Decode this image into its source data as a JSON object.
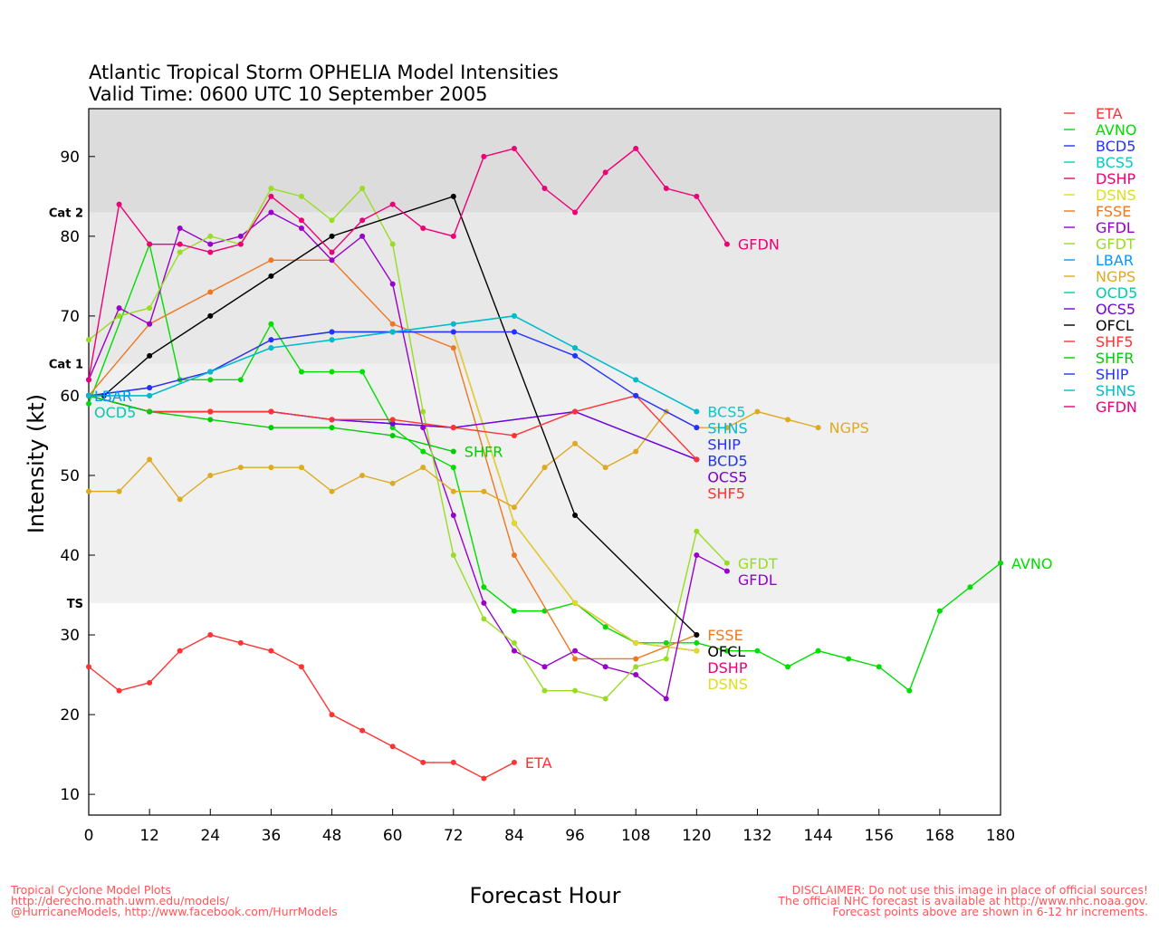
{
  "chart_data": {
    "type": "line",
    "title": "Atlantic Tropical Storm OPHELIA Model Intensities",
    "subtitle": "Valid Time: 0600 UTC 10 September 2005",
    "xlabel": "Forecast Hour",
    "ylabel": "Intensity (kt)",
    "xlim": [
      0,
      180
    ],
    "ylim": [
      7.4,
      96
    ],
    "xticks": [
      0,
      12,
      24,
      36,
      48,
      60,
      72,
      84,
      96,
      108,
      120,
      132,
      144,
      156,
      168,
      180
    ],
    "yticks": [
      10,
      20,
      30,
      40,
      50,
      60,
      70,
      80,
      90
    ],
    "bands": [
      {
        "label": "TS",
        "from": 34,
        "to": 64,
        "color": "#f0f0f0"
      },
      {
        "label": "Cat 1",
        "from": 64,
        "to": 83,
        "color": "#e8e8e8"
      },
      {
        "label": "Cat 2",
        "from": 83,
        "to": 96,
        "color": "#dcdcdc"
      }
    ],
    "legend_position": "right",
    "series": [
      {
        "name": "ETA",
        "color": "#ff3333",
        "x": [
          0,
          6,
          12,
          18,
          24,
          30,
          36,
          42,
          48,
          54,
          60,
          66,
          72,
          78,
          84
        ],
        "y": [
          26,
          23,
          24,
          28,
          30,
          29,
          28,
          26,
          20,
          18,
          16,
          14,
          14,
          12,
          14
        ]
      },
      {
        "name": "AVNO",
        "color": "#00dd00",
        "x": [
          0,
          12,
          18,
          24,
          30,
          36,
          42,
          48,
          54,
          60,
          66,
          72,
          78,
          84,
          90,
          96,
          102,
          108,
          114,
          120,
          126,
          132,
          138,
          144,
          150,
          156,
          162,
          168,
          174,
          180
        ],
        "y": [
          59,
          79,
          62,
          62,
          62,
          69,
          63,
          63,
          63,
          56,
          53,
          51,
          36,
          33,
          33,
          34,
          31,
          29,
          29,
          29,
          28,
          28,
          26,
          28,
          27,
          26,
          23,
          33,
          36,
          39
        ]
      },
      {
        "name": "BCD5",
        "color": "#2233ff",
        "x": [
          0,
          12,
          24,
          36,
          48,
          60,
          72,
          96,
          120
        ],
        "y": [
          60,
          58,
          58,
          58,
          57,
          56.5,
          56,
          58,
          52
        ]
      },
      {
        "name": "BCS5",
        "color": "#00cccc",
        "x": [
          0,
          12,
          24,
          36,
          48,
          60,
          72,
          84,
          96,
          108,
          120
        ],
        "y": [
          60,
          60,
          63,
          66,
          67,
          68,
          69,
          70,
          66,
          62,
          58
        ]
      },
      {
        "name": "DSHP",
        "color": "#ee0077",
        "x": [
          0,
          12,
          24,
          36,
          48,
          60,
          72,
          84,
          96,
          108,
          120
        ],
        "y": [
          60,
          61,
          63,
          67,
          68,
          68,
          68,
          44,
          34,
          29,
          28
        ]
      },
      {
        "name": "DSNS",
        "color": "#dddd22",
        "x": [
          0,
          12,
          24,
          36,
          48,
          60,
          72,
          84,
          96,
          108,
          120
        ],
        "y": [
          60,
          61,
          63,
          67,
          68,
          68,
          68,
          44,
          34,
          29,
          28
        ]
      },
      {
        "name": "FSSE",
        "color": "#ee7722",
        "x": [
          0,
          12,
          24,
          36,
          48,
          60,
          72,
          84,
          96,
          108,
          120
        ],
        "y": [
          60,
          69,
          73,
          77,
          77,
          69,
          66,
          40,
          27,
          27,
          30
        ]
      },
      {
        "name": "GFDL",
        "color": "#9900cc",
        "x": [
          0,
          6,
          12,
          18,
          24,
          30,
          36,
          42,
          48,
          54,
          60,
          66,
          72,
          78,
          84,
          90,
          96,
          102,
          108,
          114,
          120,
          126
        ],
        "y": [
          62,
          71,
          69,
          81,
          79,
          80,
          83,
          81,
          77,
          80,
          74,
          56,
          45,
          34,
          28,
          26,
          28,
          26,
          25,
          22,
          40,
          38
        ]
      },
      {
        "name": "GFDT",
        "color": "#99dd22",
        "x": [
          0,
          6,
          12,
          18,
          24,
          30,
          36,
          42,
          48,
          54,
          60,
          66,
          72,
          78,
          84,
          90,
          96,
          102,
          108,
          114,
          120,
          126
        ],
        "y": [
          67,
          70,
          71,
          78,
          80,
          79,
          86,
          85,
          82,
          86,
          79,
          58,
          40,
          32,
          29,
          23,
          23,
          22,
          26,
          27,
          43,
          39
        ]
      },
      {
        "name": "LBAR",
        "color": "#0099ff",
        "x": [
          0
        ],
        "y": [
          60
        ]
      },
      {
        "name": "NGPS",
        "color": "#ddaa22",
        "x": [
          0,
          6,
          12,
          18,
          24,
          30,
          36,
          42,
          48,
          54,
          60,
          66,
          72,
          78,
          84,
          90,
          96,
          102,
          108,
          114,
          120,
          126,
          132,
          138,
          144
        ],
        "y": [
          48,
          48,
          52,
          47,
          50,
          51,
          51,
          51,
          48,
          50,
          49,
          51,
          48,
          48,
          46,
          51,
          54,
          51,
          53,
          58,
          56,
          56,
          58,
          57,
          56
        ]
      },
      {
        "name": "OCD5",
        "color": "#00ccaa",
        "x": [
          0
        ],
        "y": [
          60
        ]
      },
      {
        "name": "OCS5",
        "color": "#7700dd",
        "x": [
          0,
          12,
          24,
          36,
          48,
          60,
          72,
          96,
          120
        ],
        "y": [
          60,
          58,
          58,
          58,
          57,
          56.5,
          56,
          58,
          52
        ]
      },
      {
        "name": "OFCL",
        "color": "#000000",
        "x": [
          0,
          3,
          12,
          24,
          36,
          48,
          72,
          96,
          120
        ],
        "y": [
          60,
          60,
          65,
          70,
          75,
          80,
          85,
          45,
          30
        ]
      },
      {
        "name": "SHF5",
        "color": "#ff3333",
        "x": [
          0,
          12,
          24,
          36,
          48,
          60,
          72,
          84,
          96,
          108,
          120
        ],
        "y": [
          60,
          58,
          58,
          58,
          57,
          57,
          56,
          55,
          58,
          60,
          52
        ]
      },
      {
        "name": "SHFR",
        "color": "#00cc00",
        "x": [
          0,
          12,
          24,
          36,
          48,
          60,
          72
        ],
        "y": [
          60,
          58,
          57,
          56,
          56,
          55,
          53
        ]
      },
      {
        "name": "SHIP",
        "color": "#2233ff",
        "x": [
          0,
          12,
          24,
          36,
          48,
          60,
          72,
          84,
          96,
          108,
          120
        ],
        "y": [
          60,
          61,
          63,
          67,
          68,
          68,
          68,
          68,
          65,
          60,
          56
        ]
      },
      {
        "name": "SHNS",
        "color": "#00bbcc",
        "x": [
          0,
          12,
          24,
          36,
          48,
          60,
          72,
          84,
          96,
          108,
          120
        ],
        "y": [
          60,
          60,
          63,
          66,
          67,
          68,
          69,
          70,
          66,
          62,
          58
        ]
      },
      {
        "name": "GFDN",
        "color": "#ee0077",
        "x": [
          0,
          6,
          12,
          18,
          24,
          30,
          36,
          42,
          48,
          54,
          60,
          66,
          72,
          78,
          84,
          90,
          96,
          102,
          108,
          114,
          120,
          126
        ],
        "y": [
          62,
          84,
          79,
          79,
          78,
          79,
          85,
          82,
          78,
          82,
          84,
          81,
          80,
          90,
          91,
          86,
          83,
          88,
          91,
          86,
          85,
          79
        ]
      }
    ]
  },
  "footer": {
    "left": [
      "Tropical Cyclone Model Plots",
      "http://derecho.math.uwm.edu/models/",
      "@HurricaneModels, http://www.facebook.com/HurrModels"
    ],
    "right": [
      "DISCLAIMER: Do not use this image in place of official sources!",
      "The official NHC forecast is available at http://www.nhc.noaa.gov.",
      "Forecast points above are shown in 6-12 hr increments."
    ]
  }
}
